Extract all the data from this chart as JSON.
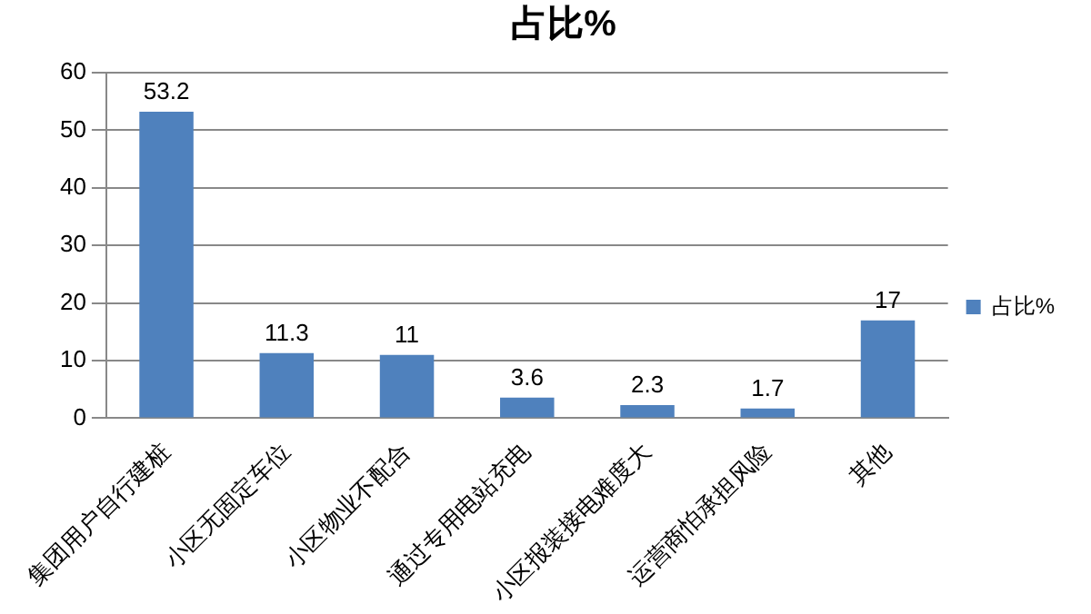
{
  "chart_data": {
    "type": "bar",
    "title": "占比%",
    "categories": [
      "集团用户自行建桩",
      "小区无固定车位",
      "小区物业不配合",
      "通过专用电站充电",
      "小区报装接电难度大",
      "运营商怕承担风险",
      "其他"
    ],
    "series": [
      {
        "name": "占比%",
        "color": "#4f81bd",
        "values": [
          53.2,
          11.3,
          11,
          3.6,
          2.3,
          1.7,
          17
        ]
      }
    ],
    "ylim": [
      0,
      60
    ],
    "yticks": [
      0,
      10,
      20,
      30,
      40,
      50,
      60
    ],
    "grid": "y",
    "legend": "right",
    "data_labels": true
  }
}
